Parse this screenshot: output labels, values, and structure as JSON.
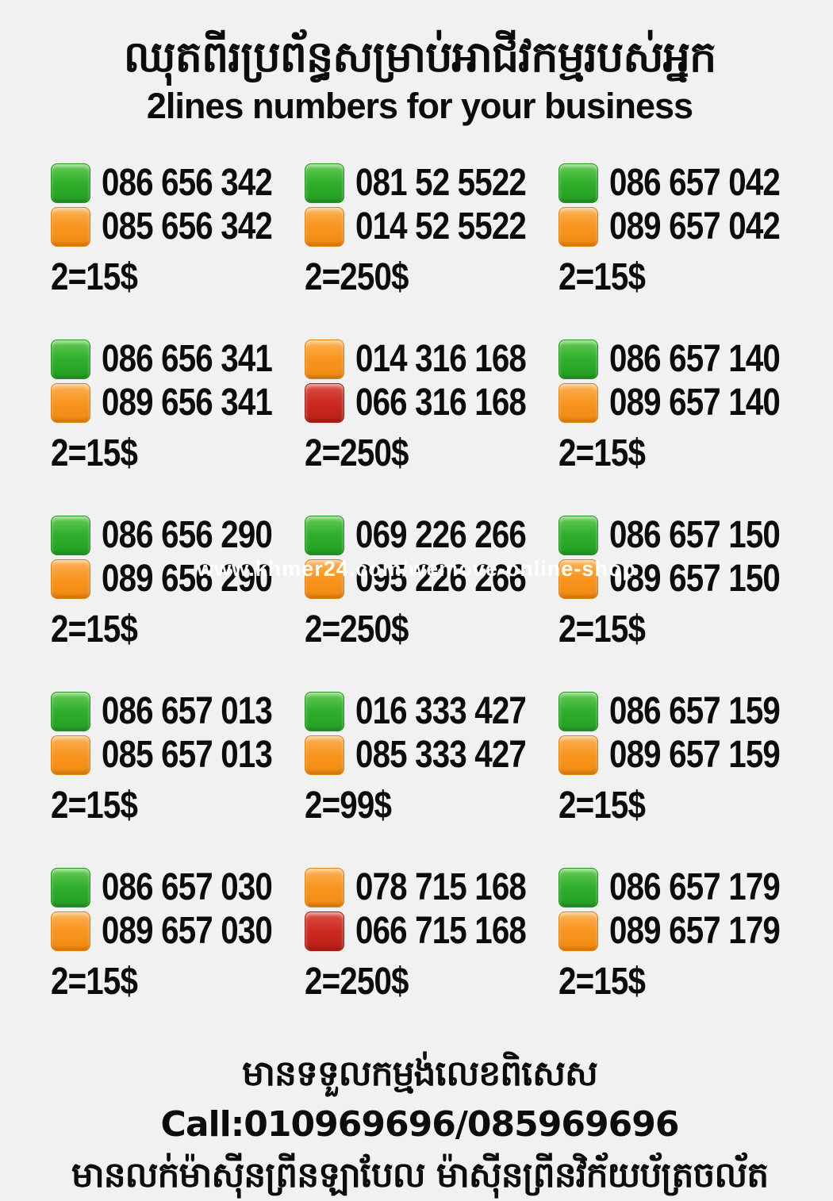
{
  "header": {
    "title_khmer": "ឈុតពីរប្រព័ន្ធសម្រាប់អាជីវកម្មរបស់អ្នក",
    "subtitle": "2lines numbers for your business"
  },
  "watermark": {
    "text": "www.khmer24.com/wemove-online-shop"
  },
  "colors": {
    "background": "#f1f1f1",
    "text": "#0c0c0c",
    "green": "#2fae2b",
    "orange": "#f8941e",
    "red": "#cb2a20",
    "watermark_text": "#ffffff"
  },
  "offers": [
    {
      "sim1_color": "green",
      "sim1_number": "086 656 342",
      "sim2_color": "orange",
      "sim2_number": "085 656 342",
      "price": "2=15$"
    },
    {
      "sim1_color": "green",
      "sim1_number": "081 52 5522",
      "sim2_color": "orange",
      "sim2_number": "014 52 5522",
      "price": "2=250$"
    },
    {
      "sim1_color": "green",
      "sim1_number": "086 657 042",
      "sim2_color": "orange",
      "sim2_number": "089 657 042",
      "price": "2=15$"
    },
    {
      "sim1_color": "green",
      "sim1_number": "086 656 341",
      "sim2_color": "orange",
      "sim2_number": "089 656 341",
      "price": "2=15$"
    },
    {
      "sim1_color": "orange",
      "sim1_number": "014 316 168",
      "sim2_color": "red",
      "sim2_number": "066 316 168",
      "price": "2=250$"
    },
    {
      "sim1_color": "green",
      "sim1_number": "086 657 140",
      "sim2_color": "orange",
      "sim2_number": "089 657 140",
      "price": "2=15$"
    },
    {
      "sim1_color": "green",
      "sim1_number": "086 656 290",
      "sim2_color": "orange",
      "sim2_number": "089 656 290",
      "price": "2=15$"
    },
    {
      "sim1_color": "green",
      "sim1_number": "069 226 266",
      "sim2_color": "orange",
      "sim2_number": "095 226 266",
      "price": "2=250$"
    },
    {
      "sim1_color": "green",
      "sim1_number": "086 657 150",
      "sim2_color": "orange",
      "sim2_number": "089 657 150",
      "price": "2=15$"
    },
    {
      "sim1_color": "green",
      "sim1_number": "086 657 013",
      "sim2_color": "orange",
      "sim2_number": "085 657 013",
      "price": "2=15$"
    },
    {
      "sim1_color": "green",
      "sim1_number": "016 333 427",
      "sim2_color": "orange",
      "sim2_number": "085 333 427",
      "price": "2=99$"
    },
    {
      "sim1_color": "green",
      "sim1_number": "086 657 159",
      "sim2_color": "orange",
      "sim2_number": "089 657 159",
      "price": "2=15$"
    },
    {
      "sim1_color": "green",
      "sim1_number": "086 657 030",
      "sim2_color": "orange",
      "sim2_number": "089 657 030",
      "price": "2=15$"
    },
    {
      "sim1_color": "orange",
      "sim1_number": "078 715 168",
      "sim2_color": "red",
      "sim2_number": "066 715 168",
      "price": "2=250$"
    },
    {
      "sim1_color": "green",
      "sim1_number": "086 657 179",
      "sim2_color": "orange",
      "sim2_number": "089 657 179",
      "price": "2=15$"
    }
  ],
  "footer": {
    "line1": "មានទទួលកម្មង់លេខពិសេស Call:010969696/085969696",
    "line2": "មានលក់ម៉ាស៊ីនព្រីនឡាបែល ម៉ាស៊ីនព្រីនវិក័យប័ត្រចល័ត"
  }
}
